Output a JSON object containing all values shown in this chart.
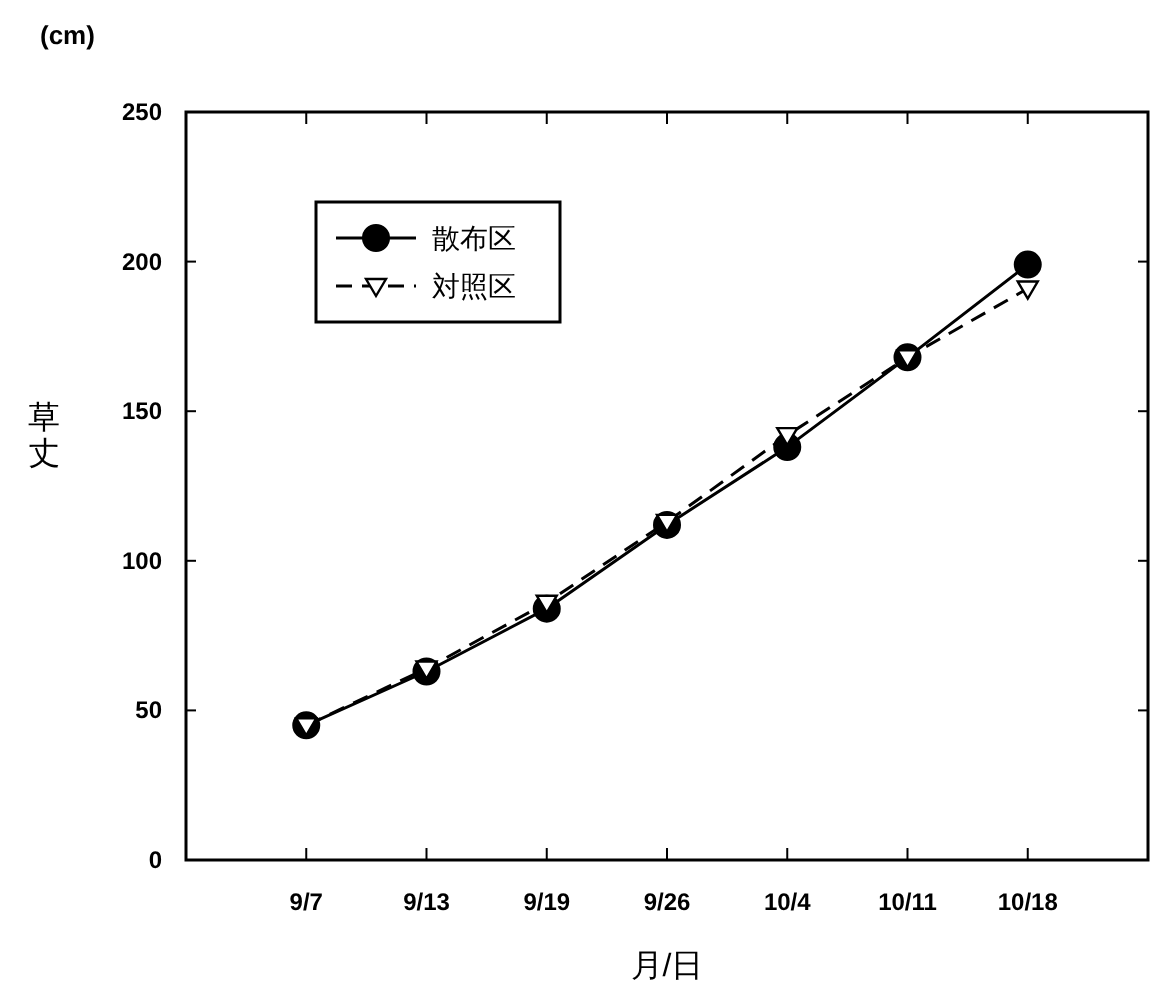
{
  "chart_data": {
    "type": "line",
    "xlabel": "月/日",
    "ylabel": "草丈",
    "annotations": [
      "(cm)"
    ],
    "categories": [
      "9/7",
      "9/13",
      "9/19",
      "9/26",
      "10/4",
      "10/11",
      "10/18"
    ],
    "series": [
      {
        "name": "散布区",
        "color": "#000000",
        "values": [
          45,
          63,
          84,
          112,
          138,
          168,
          199
        ],
        "marker": "circle",
        "line_style": "solid"
      },
      {
        "name": "対照区",
        "color": "#000000",
        "values": [
          45,
          64,
          86,
          113,
          142,
          168,
          191
        ],
        "marker": "triangle",
        "line_style": "dashed"
      }
    ],
    "ylim": [
      0,
      250
    ],
    "yticks": [
      0,
      50,
      100,
      150,
      200,
      250
    ],
    "grid": false,
    "legend": "top left"
  }
}
